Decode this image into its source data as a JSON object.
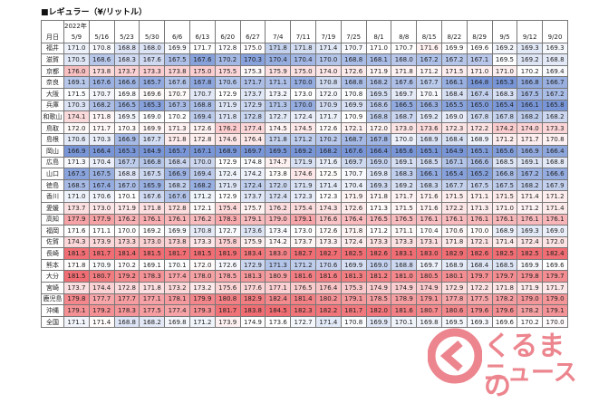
{
  "header": {
    "title": "■レギュラー（¥/リットル）"
  },
  "table": {
    "corner": "月日",
    "year": "2022年",
    "columns": [
      "5/9",
      "5/16",
      "5/23",
      "5/30",
      "6/6",
      "6/13",
      "6/20",
      "6/27",
      "7/4",
      "7/11",
      "7/19",
      "7/25",
      "8/1",
      "8/8",
      "8/15",
      "8/22",
      "8/29",
      "9/5",
      "9/12",
      "9/20"
    ],
    "rows": [
      {
        "name": "福井",
        "values": [
          171.0,
          170.8,
          168.8,
          168.0,
          169.9,
          171.7,
          172.8,
          175.0,
          171.8,
          171.8,
          171.4,
          170.7,
          171.0,
          170.7,
          171.6,
          169.9,
          169.6,
          169.2,
          169.3,
          169.3
        ]
      },
      {
        "name": "滋賀",
        "values": [
          170.5,
          168.6,
          168.3,
          167.6,
          167.5,
          167.6,
          170.2,
          170.3,
          170.4,
          170.4,
          170.0,
          168.8,
          168.1,
          168.0,
          167.2,
          167.2,
          167.1,
          169.5,
          169.2,
          168.8
        ]
      },
      {
        "name": "京都",
        "values": [
          176.0,
          173.8,
          173.7,
          173.3,
          173.8,
          175.0,
          175.5,
          175.3,
          175.9,
          175.0,
          174.0,
          172.6,
          171.9,
          171.8,
          171.2,
          171.5,
          171.0,
          171.0,
          170.2,
          169.4
        ]
      },
      {
        "name": "奈良",
        "values": [
          169.1,
          167.6,
          166.6,
          165.7,
          167.6,
          167.8,
          170.6,
          171.7,
          171.1,
          170.0,
          170.8,
          168.8,
          168.2,
          167.6,
          167.7,
          166.1,
          164.8,
          165.3,
          166.8,
          166.7
        ]
      },
      {
        "name": "大阪",
        "values": [
          171.5,
          170.7,
          169.8,
          169.6,
          170.7,
          170.7,
          172.9,
          173.7,
          173.2,
          173.0,
          172.0,
          170.8,
          169.5,
          169.7,
          170.1,
          168.4,
          167.4,
          168.3,
          167.5,
          167.2
        ]
      },
      {
        "name": "兵庫",
        "values": [
          170.3,
          168.2,
          166.5,
          165.3,
          167.3,
          168.8,
          171.9,
          172.9,
          171.3,
          170.0,
          170.9,
          169.9,
          168.6,
          166.5,
          166.3,
          165.5,
          165.0,
          165.4,
          166.1,
          165.8
        ]
      },
      {
        "name": "和歌山",
        "values": [
          174.1,
          171.8,
          169.5,
          169.0,
          170.2,
          169.4,
          171.8,
          172.8,
          172.7,
          172.4,
          171.7,
          170.9,
          168.8,
          168.7,
          169.2,
          169.0,
          167.8,
          167.8,
          168.2,
          168.2
        ]
      },
      {
        "name": "鳥取",
        "values": [
          172.0,
          171.7,
          170.3,
          169.9,
          171.3,
          172.6,
          176.2,
          177.4,
          174.5,
          174.5,
          172.6,
          172.1,
          172.0,
          173.0,
          173.6,
          172.3,
          172.2,
          174.2,
          174.0,
          173.3
        ]
      },
      {
        "name": "島根",
        "values": [
          170.6,
          170.3,
          166.9,
          167.7,
          171.8,
          172.8,
          174.6,
          176.4,
          171.8,
          171.2,
          170.2,
          168.7,
          167.8,
          170.0,
          168.9,
          168.4,
          168.9,
          171.2,
          171.7,
          170.8
        ]
      },
      {
        "name": "岡山",
        "values": [
          166.9,
          166.4,
          165.3,
          164.9,
          165.7,
          167.1,
          168.9,
          169.7,
          169.5,
          169.2,
          168.2,
          167.6,
          166.4,
          165.6,
          165.1,
          164.9,
          165.1,
          165.6,
          166.9,
          166.4
        ]
      },
      {
        "name": "広島",
        "values": [
          171.3,
          170.4,
          167.7,
          166.8,
          168.4,
          170.0,
          172.9,
          174.8,
          174.7,
          171.9,
          171.6,
          169.7,
          169.0,
          169.1,
          168.5,
          167.1,
          166.6,
          168.5,
          169.1,
          168.8
        ]
      },
      {
        "name": "山口",
        "values": [
          167.5,
          167.5,
          168.8,
          167.5,
          166.9,
          169.4,
          172.4,
          174.2,
          173.8,
          174.6,
          172.5,
          170.7,
          169.8,
          168.3,
          166.1,
          165.4,
          165.2,
          166.8,
          167.2,
          166.6
        ]
      },
      {
        "name": "徳島",
        "values": [
          168.5,
          167.4,
          167.0,
          165.9,
          168.2,
          168.2,
          171.9,
          172.4,
          172.0,
          171.9,
          171.4,
          170.4,
          169.3,
          169.2,
          168.3,
          167.7,
          167.5,
          167.5,
          168.2,
          167.9
        ]
      },
      {
        "name": "香川",
        "values": [
          171.0,
          170.6,
          170.1,
          167.6,
          167.6,
          171.2,
          172.9,
          173.7,
          172.4,
          172.3,
          172.3,
          171.9,
          171.8,
          171.7,
          171.6,
          171.5,
          171.1,
          171.5,
          171.4,
          171.2
        ]
      },
      {
        "name": "愛媛",
        "values": [
          173.7,
          173.0,
          171.9,
          171.8,
          172.8,
          172.1,
          175.4,
          175.7,
          176.2,
          175.4,
          174.3,
          172.6,
          171.3,
          171.5,
          171.6,
          172.2,
          171.3,
          171.0,
          171.2,
          171.4
        ]
      },
      {
        "name": "高知",
        "values": [
          177.9,
          177.9,
          176.2,
          176.1,
          176.1,
          176.2,
          178.3,
          179.1,
          179.0,
          179.1,
          176.6,
          176.4,
          176.5,
          176.5,
          176.1,
          176.1,
          176.1,
          176.1,
          176.1,
          176.1
        ]
      },
      {
        "name": "福岡",
        "values": [
          171.6,
          171.1,
          170.0,
          169.2,
          169.9,
          170.8,
          172.7,
          173.6,
          173.4,
          173.0,
          172.6,
          171.8,
          171.2,
          171.1,
          170.4,
          170.6,
          170.0,
          168.9,
          169.3,
          169.0
        ]
      },
      {
        "name": "佐賀",
        "values": [
          174.3,
          173.9,
          173.3,
          173.0,
          173.8,
          173.3,
          175.8,
          175.9,
          174.2,
          173.7,
          173.3,
          172.4,
          173.3,
          173.3,
          173.1,
          171.8,
          172.1,
          171.4,
          172.4,
          172.0
        ]
      },
      {
        "name": "長崎",
        "values": [
          181.5,
          181.7,
          181.4,
          181.5,
          181.7,
          181.5,
          181.9,
          183.4,
          183.0,
          182.7,
          182.7,
          182.5,
          182.6,
          183.1,
          183.0,
          182.9,
          182.6,
          182.5,
          182.5,
          182.4
        ]
      },
      {
        "name": "熊本",
        "values": [
          171.8,
          170.9,
          170.2,
          169.1,
          170.1,
          172.0,
          172.6,
          172.9,
          171.3,
          171.2,
          170.6,
          169.9,
          169.0,
          168.8,
          169.7,
          168.9,
          168.4,
          168.5,
          169.9,
          169.6
        ]
      },
      {
        "name": "大分",
        "values": [
          181.5,
          180.7,
          179.2,
          178.3,
          177.4,
          178.0,
          178.5,
          181.3,
          180.9,
          181.6,
          181.6,
          181.3,
          181.2,
          181.0,
          180.5,
          180.1,
          179.7,
          179.7,
          179.8,
          179.7
        ]
      },
      {
        "name": "宮崎",
        "values": [
          173.7,
          174.4,
          172.8,
          171.8,
          173.2,
          173.2,
          175.6,
          177.6,
          177.1,
          176.5,
          176.4,
          175.3,
          174.9,
          174.9,
          174.9,
          172.9,
          172.2,
          171.8,
          171.9,
          171.7
        ]
      },
      {
        "name": "鹿児島",
        "values": [
          179.8,
          177.7,
          177.7,
          177.1,
          178.1,
          179.9,
          180.8,
          182.9,
          182.4,
          181.4,
          180.2,
          179.1,
          178.5,
          178.9,
          179.1,
          177.8,
          177.5,
          178.2,
          179.0,
          179.0
        ]
      },
      {
        "name": "沖縄",
        "values": [
          179.1,
          179.2,
          178.3,
          177.5,
          177.4,
          179.3,
          181.7,
          183.8,
          184.5,
          182.3,
          182.2,
          181.7,
          182.0,
          181.6,
          180.7,
          180.6,
          179.6,
          179.6,
          178.2,
          179.1
        ]
      },
      {
        "name": "全国",
        "values": [
          171.1,
          171.4,
          168.8,
          168.2,
          169.8,
          171.2,
          173.9,
          174.9,
          173.6,
          172.7,
          171.4,
          170.8,
          169.9,
          170.1,
          169.8,
          169.5,
          169.3,
          169.6,
          170.2,
          170.0
        ]
      }
    ]
  },
  "logo": {
    "line1": "くるまの",
    "line2": "ニュース"
  }
}
